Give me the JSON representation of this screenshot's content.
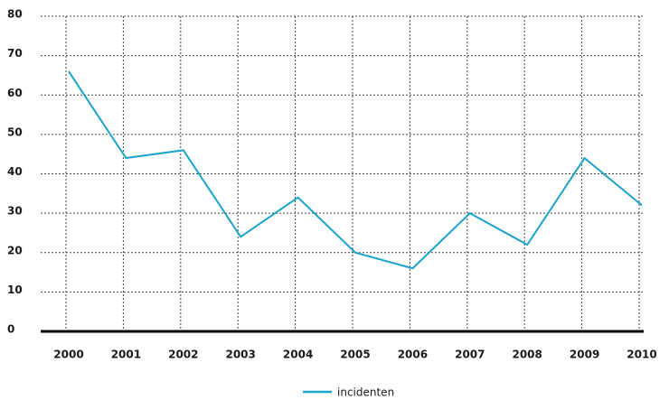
{
  "chart_data": {
    "type": "line",
    "categories": [
      "2000",
      "2001",
      "2002",
      "2003",
      "2004",
      "2005",
      "2006",
      "2007",
      "2008",
      "2009",
      "2010"
    ],
    "series": [
      {
        "name": "incidenten",
        "color": "#1ba3c9",
        "values": [
          66,
          44,
          46,
          24,
          34,
          20,
          16,
          30,
          22,
          44,
          32
        ]
      }
    ],
    "ylim": [
      0,
      80
    ],
    "yticks": [
      0,
      10,
      20,
      30,
      40,
      50,
      60,
      70,
      80
    ],
    "grid": true,
    "legend": "bottom"
  }
}
